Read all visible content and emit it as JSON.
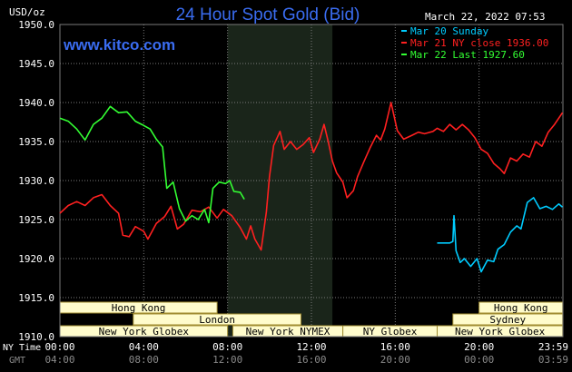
{
  "header": {
    "title": "24 Hour Spot Gold (Bid)",
    "timestamp": "March 22, 2022 07:53",
    "unit": "USD/oz",
    "watermark": "www.kitco.com"
  },
  "legend": [
    {
      "label": "Mar 20 Sunday",
      "color": "#00ccff"
    },
    {
      "label": "Mar 21 NY close 1936.00",
      "color": "#ff2020"
    },
    {
      "label": "Mar 22 Last 1927.60",
      "color": "#33ff33"
    }
  ],
  "axes": {
    "row1_label": "NY Time",
    "row2_label": "GMT",
    "x_ticks_ny": [
      "00:00",
      "04:00",
      "08:00",
      "12:00",
      "16:00",
      "20:00",
      "23:59"
    ],
    "x_ticks_gmt": [
      "04:00",
      "08:00",
      "12:00",
      "16:00",
      "20:00",
      "00:00",
      "03:59"
    ]
  },
  "sessions": {
    "row1": [
      {
        "label": "Hong Kong",
        "start": 0,
        "end": 7.5
      },
      {
        "label": "Hong Kong",
        "start": 20.0,
        "end": 23.99
      }
    ],
    "row2": [
      {
        "label": "London",
        "start": 3.5,
        "end": 11.5
      },
      {
        "label": "Sydney",
        "start": 18.75,
        "end": 23.99
      }
    ],
    "row3": [
      {
        "label": "New York Globex",
        "start": 0,
        "end": 8.0
      },
      {
        "label": "New York NYMEX",
        "start": 8.25,
        "end": 13.5
      },
      {
        "label": "NY Globex",
        "start": 13.5,
        "end": 18.0
      },
      {
        "label": "New York Globex",
        "start": 18.0,
        "end": 23.99
      }
    ]
  },
  "colors": {
    "background": "#000000",
    "grid": "#7a7a7a",
    "shade": "#1a251a",
    "title": "#3a6cf0",
    "session_fill": "#fffccc",
    "session_border": "#a08c30",
    "session_text": "#000000",
    "axis_text": "#ffffff",
    "gmt_text": "#8a8a8a"
  },
  "chart_data": {
    "type": "line",
    "title": "24 Hour Spot Gold (Bid)",
    "ylabel": "USD/oz",
    "xlabel": "NY Time",
    "xlim": [
      0,
      24
    ],
    "ylim": [
      1910,
      1950
    ],
    "y_ticks": [
      1910,
      1915,
      1920,
      1925,
      1930,
      1935,
      1940,
      1945,
      1950
    ],
    "shaded_region": {
      "x_start": 8.0,
      "x_end": 13.0
    },
    "series": [
      {
        "name": "Mar 20 Sunday",
        "color": "#00ccff",
        "points": [
          [
            18.0,
            1922.0
          ],
          [
            18.6,
            1922.0
          ],
          [
            18.75,
            1922.2
          ],
          [
            18.8,
            1925.5
          ],
          [
            18.9,
            1921.0
          ],
          [
            19.1,
            1919.5
          ],
          [
            19.3,
            1920.0
          ],
          [
            19.6,
            1919.0
          ],
          [
            19.9,
            1920.0
          ],
          [
            20.1,
            1918.3
          ],
          [
            20.4,
            1919.8
          ],
          [
            20.7,
            1919.6
          ],
          [
            20.9,
            1921.2
          ],
          [
            21.2,
            1921.8
          ],
          [
            21.5,
            1923.4
          ],
          [
            21.8,
            1924.2
          ],
          [
            22.0,
            1923.8
          ],
          [
            22.3,
            1927.2
          ],
          [
            22.6,
            1927.8
          ],
          [
            22.9,
            1926.4
          ],
          [
            23.2,
            1926.7
          ],
          [
            23.5,
            1926.3
          ],
          [
            23.8,
            1927.0
          ],
          [
            23.98,
            1926.6
          ]
        ]
      },
      {
        "name": "Mar 21 NY close 1936.00",
        "color": "#ff2020",
        "points": [
          [
            0.0,
            1925.8
          ],
          [
            0.4,
            1926.8
          ],
          [
            0.8,
            1927.3
          ],
          [
            1.2,
            1926.8
          ],
          [
            1.6,
            1927.8
          ],
          [
            2.0,
            1928.2
          ],
          [
            2.4,
            1926.8
          ],
          [
            2.8,
            1925.8
          ],
          [
            3.0,
            1923.0
          ],
          [
            3.3,
            1922.8
          ],
          [
            3.6,
            1924.1
          ],
          [
            4.0,
            1923.5
          ],
          [
            4.2,
            1922.5
          ],
          [
            4.6,
            1924.5
          ],
          [
            5.0,
            1925.4
          ],
          [
            5.3,
            1926.7
          ],
          [
            5.6,
            1923.8
          ],
          [
            5.9,
            1924.4
          ],
          [
            6.3,
            1926.2
          ],
          [
            6.7,
            1926.0
          ],
          [
            7.1,
            1926.6
          ],
          [
            7.5,
            1925.2
          ],
          [
            7.8,
            1926.3
          ],
          [
            8.2,
            1925.5
          ],
          [
            8.6,
            1924.0
          ],
          [
            8.9,
            1922.5
          ],
          [
            9.1,
            1924.2
          ],
          [
            9.3,
            1922.5
          ],
          [
            9.6,
            1921.1
          ],
          [
            9.85,
            1926.0
          ],
          [
            10.0,
            1930.5
          ],
          [
            10.2,
            1934.5
          ],
          [
            10.5,
            1936.3
          ],
          [
            10.7,
            1934.0
          ],
          [
            11.0,
            1935.0
          ],
          [
            11.3,
            1934.0
          ],
          [
            11.6,
            1934.6
          ],
          [
            11.9,
            1935.5
          ],
          [
            12.1,
            1933.6
          ],
          [
            12.4,
            1935.3
          ],
          [
            12.6,
            1937.2
          ],
          [
            12.8,
            1935.0
          ],
          [
            13.0,
            1932.5
          ],
          [
            13.2,
            1931.0
          ],
          [
            13.5,
            1929.8
          ],
          [
            13.7,
            1927.8
          ],
          [
            14.0,
            1928.7
          ],
          [
            14.2,
            1930.5
          ],
          [
            14.5,
            1932.4
          ],
          [
            14.8,
            1934.2
          ],
          [
            15.1,
            1935.8
          ],
          [
            15.3,
            1935.2
          ],
          [
            15.5,
            1936.6
          ],
          [
            15.8,
            1940.0
          ],
          [
            16.1,
            1936.4
          ],
          [
            16.4,
            1935.3
          ],
          [
            16.8,
            1935.8
          ],
          [
            17.1,
            1936.2
          ],
          [
            17.4,
            1936.0
          ],
          [
            17.8,
            1936.3
          ],
          [
            18.0,
            1936.7
          ],
          [
            18.3,
            1936.3
          ],
          [
            18.6,
            1937.2
          ],
          [
            18.9,
            1936.5
          ],
          [
            19.2,
            1937.2
          ],
          [
            19.5,
            1936.5
          ],
          [
            19.8,
            1935.5
          ],
          [
            20.1,
            1934.0
          ],
          [
            20.4,
            1933.5
          ],
          [
            20.7,
            1932.2
          ],
          [
            21.0,
            1931.5
          ],
          [
            21.2,
            1930.9
          ],
          [
            21.5,
            1932.9
          ],
          [
            21.8,
            1932.5
          ],
          [
            22.1,
            1933.4
          ],
          [
            22.4,
            1933.0
          ],
          [
            22.7,
            1935.0
          ],
          [
            23.0,
            1934.4
          ],
          [
            23.3,
            1936.2
          ],
          [
            23.6,
            1937.2
          ],
          [
            23.98,
            1938.7
          ]
        ]
      },
      {
        "name": "Mar 22 Last 1927.60",
        "color": "#33ff33",
        "points": [
          [
            0.0,
            1938.0
          ],
          [
            0.4,
            1937.6
          ],
          [
            0.8,
            1936.6
          ],
          [
            1.2,
            1935.2
          ],
          [
            1.6,
            1937.2
          ],
          [
            2.0,
            1938.0
          ],
          [
            2.4,
            1939.5
          ],
          [
            2.8,
            1938.7
          ],
          [
            3.2,
            1938.8
          ],
          [
            3.6,
            1937.6
          ],
          [
            3.9,
            1937.2
          ],
          [
            4.3,
            1936.6
          ],
          [
            4.6,
            1935.3
          ],
          [
            4.9,
            1934.3
          ],
          [
            5.1,
            1929.0
          ],
          [
            5.4,
            1929.8
          ],
          [
            5.7,
            1926.4
          ],
          [
            6.0,
            1924.8
          ],
          [
            6.3,
            1925.5
          ],
          [
            6.6,
            1925.0
          ],
          [
            6.9,
            1926.3
          ],
          [
            7.1,
            1924.6
          ],
          [
            7.3,
            1929.0
          ],
          [
            7.6,
            1929.8
          ],
          [
            7.9,
            1929.6
          ],
          [
            8.1,
            1930.0
          ],
          [
            8.3,
            1928.6
          ],
          [
            8.6,
            1928.5
          ],
          [
            8.8,
            1927.6
          ]
        ]
      }
    ]
  }
}
